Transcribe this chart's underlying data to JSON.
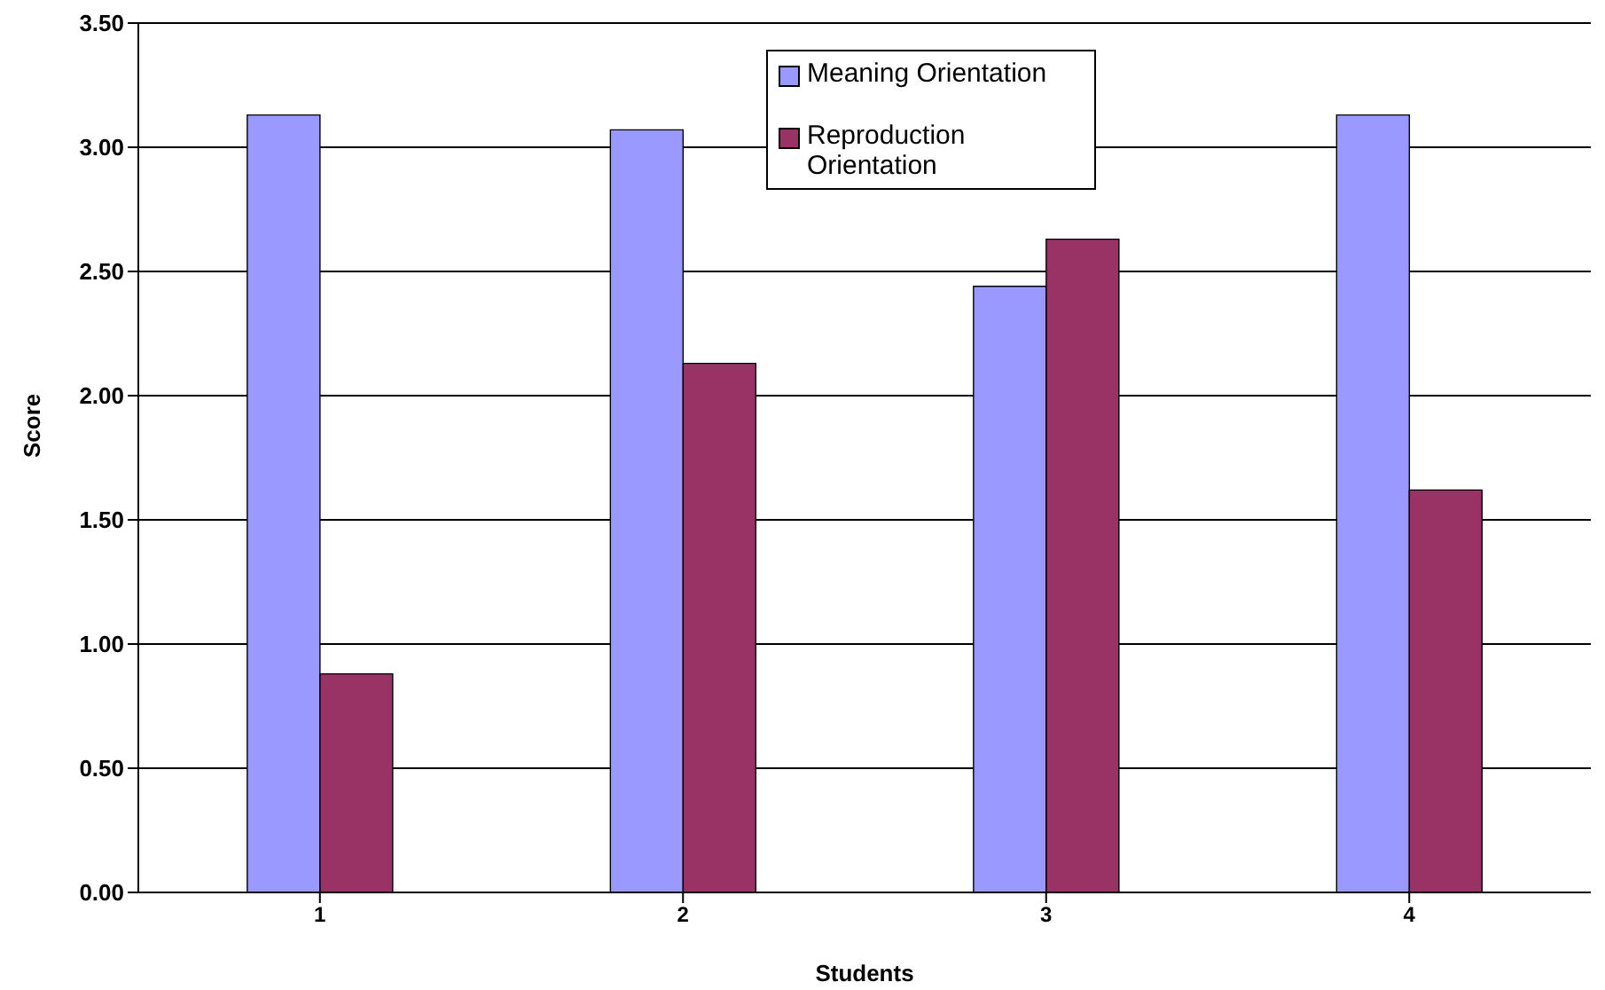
{
  "chart_data": {
    "type": "bar",
    "xlabel": "Students",
    "ylabel": "Score",
    "categories": [
      "1",
      "2",
      "3",
      "4"
    ],
    "series": [
      {
        "name": "Meaning Orientation",
        "color": "#9999ff",
        "values": [
          3.13,
          3.07,
          2.44,
          3.13
        ]
      },
      {
        "name": "Reproduction Orientation",
        "color": "#993366",
        "values": [
          0.88,
          2.13,
          2.63,
          1.62
        ]
      }
    ],
    "ylim": [
      0,
      3.5
    ],
    "yticks": [
      {
        "value": 0,
        "label": "0.00"
      },
      {
        "value": 0.5,
        "label": "0.50"
      },
      {
        "value": 1,
        "label": "1.00"
      },
      {
        "value": 1.5,
        "label": "1.50"
      },
      {
        "value": 2,
        "label": "2.00"
      },
      {
        "value": 2.5,
        "label": "2.50"
      },
      {
        "value": 3,
        "label": "3.00"
      },
      {
        "value": 3.5,
        "label": "3.50"
      }
    ],
    "grid": "y",
    "legend": "top"
  }
}
